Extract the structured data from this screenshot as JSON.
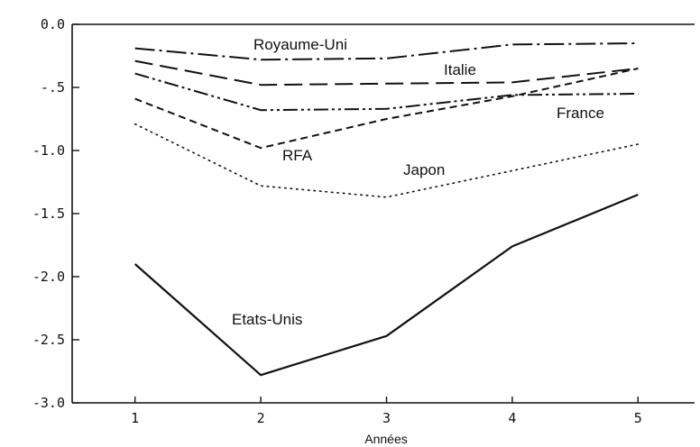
{
  "chart_data": {
    "type": "line",
    "x": [
      1,
      2,
      3,
      4,
      5
    ],
    "xlabel": "Années",
    "ylabel": "",
    "title": "",
    "xlim": [
      0.5,
      5.45
    ],
    "ylim": [
      -3.0,
      0.0
    ],
    "yticks": [
      "0.0",
      "-.5",
      "-1.0",
      "-1.5",
      "-2.0",
      "-2.5",
      "-3.0"
    ],
    "xticks": [
      "1",
      "2",
      "3",
      "4",
      "5"
    ],
    "grid": false,
    "series": [
      {
        "name": "Royaume-Uni",
        "style": "dash-dot",
        "values": [
          -0.19,
          -0.28,
          -0.27,
          -0.16,
          -0.15
        ]
      },
      {
        "name": "Italie",
        "style": "long-dash",
        "values": [
          -0.29,
          -0.48,
          -0.47,
          -0.46,
          -0.35
        ]
      },
      {
        "name": "France",
        "style": "dash-dot-dot",
        "values": [
          -0.39,
          -0.68,
          -0.67,
          -0.56,
          -0.55
        ]
      },
      {
        "name": "RFA",
        "style": "short-dash",
        "values": [
          -0.59,
          -0.98,
          -0.75,
          -0.57,
          -0.35
        ]
      },
      {
        "name": "Japon",
        "style": "dotted",
        "values": [
          -0.79,
          -1.28,
          -1.37,
          -1.16,
          -0.95
        ]
      },
      {
        "name": "Etats-Unis",
        "style": "solid",
        "values": [
          -1.9,
          -2.78,
          -2.47,
          -1.76,
          -1.35
        ]
      }
    ]
  }
}
